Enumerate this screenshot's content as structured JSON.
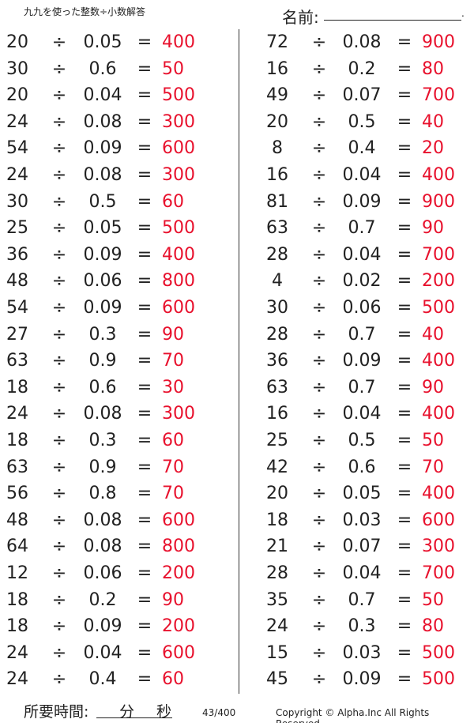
{
  "header": {
    "title": "九九を使った整数÷小数解答",
    "name_label": "名前:",
    "name_end": "."
  },
  "symbols": {
    "divide": "÷",
    "equals": "="
  },
  "colors": {
    "answer": "#e8112d"
  },
  "left": [
    [
      "20",
      "0.05",
      "400"
    ],
    [
      "30",
      "0.6",
      "50"
    ],
    [
      "20",
      "0.04",
      "500"
    ],
    [
      "24",
      "0.08",
      "300"
    ],
    [
      "54",
      "0.09",
      "600"
    ],
    [
      "24",
      "0.08",
      "300"
    ],
    [
      "30",
      "0.5",
      "60"
    ],
    [
      "25",
      "0.05",
      "500"
    ],
    [
      "36",
      "0.09",
      "400"
    ],
    [
      "48",
      "0.06",
      "800"
    ],
    [
      "54",
      "0.09",
      "600"
    ],
    [
      "27",
      "0.3",
      "90"
    ],
    [
      "63",
      "0.9",
      "70"
    ],
    [
      "18",
      "0.6",
      "30"
    ],
    [
      "24",
      "0.08",
      "300"
    ],
    [
      "18",
      "0.3",
      "60"
    ],
    [
      "63",
      "0.9",
      "70"
    ],
    [
      "56",
      "0.8",
      "70"
    ],
    [
      "48",
      "0.08",
      "600"
    ],
    [
      "64",
      "0.08",
      "800"
    ],
    [
      "12",
      "0.06",
      "200"
    ],
    [
      "18",
      "0.2",
      "90"
    ],
    [
      "18",
      "0.09",
      "200"
    ],
    [
      "24",
      "0.04",
      "600"
    ],
    [
      "24",
      "0.4",
      "60"
    ]
  ],
  "right": [
    [
      "72",
      "0.08",
      "900"
    ],
    [
      "16",
      "0.2",
      "80"
    ],
    [
      "49",
      "0.07",
      "700"
    ],
    [
      "20",
      "0.5",
      "40"
    ],
    [
      "8",
      "0.4",
      "20"
    ],
    [
      "16",
      "0.04",
      "400"
    ],
    [
      "81",
      "0.09",
      "900"
    ],
    [
      "63",
      "0.7",
      "90"
    ],
    [
      "28",
      "0.04",
      "700"
    ],
    [
      "4",
      "0.02",
      "200"
    ],
    [
      "30",
      "0.06",
      "500"
    ],
    [
      "28",
      "0.7",
      "40"
    ],
    [
      "36",
      "0.09",
      "400"
    ],
    [
      "63",
      "0.7",
      "90"
    ],
    [
      "16",
      "0.04",
      "400"
    ],
    [
      "25",
      "0.5",
      "50"
    ],
    [
      "42",
      "0.6",
      "70"
    ],
    [
      "20",
      "0.05",
      "400"
    ],
    [
      "18",
      "0.03",
      "600"
    ],
    [
      "21",
      "0.07",
      "300"
    ],
    [
      "28",
      "0.04",
      "700"
    ],
    [
      "35",
      "0.7",
      "50"
    ],
    [
      "24",
      "0.3",
      "80"
    ],
    [
      "15",
      "0.03",
      "500"
    ],
    [
      "45",
      "0.09",
      "500"
    ]
  ],
  "footer": {
    "time_label": "所要時間:",
    "minutes": "分",
    "seconds": "秒",
    "page": "43/400",
    "copyright": "Copyright © Alpha.Inc All Rights Reserved."
  }
}
